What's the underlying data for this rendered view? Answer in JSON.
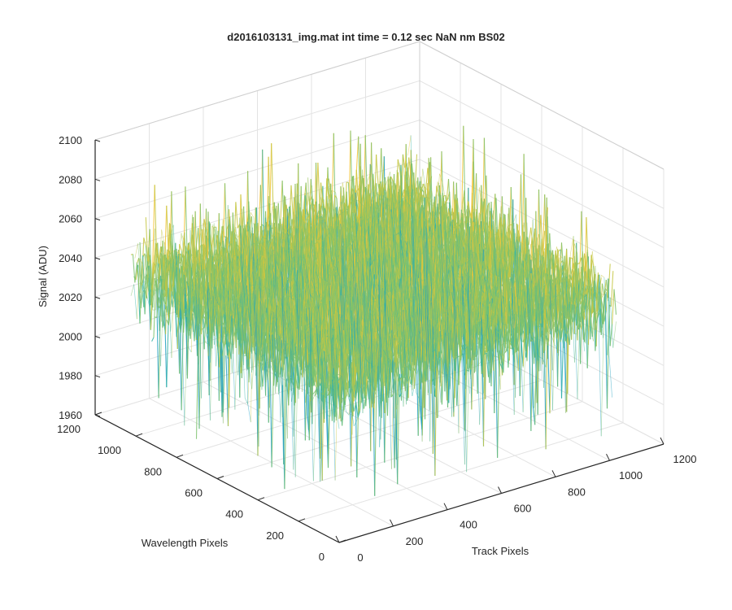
{
  "chart_data": {
    "type": "surface",
    "title": "d2016103131_img.mat int time = 0.12 sec  NaN nm BS02",
    "xlabel": "Track Pixels",
    "ylabel": "Wavelength Pixels",
    "zlabel": "Signal (ADU)",
    "xlim": [
      0,
      1200
    ],
    "ylim": [
      0,
      1200
    ],
    "zlim": [
      1960,
      2100
    ],
    "x_ticks": [
      0,
      200,
      400,
      600,
      800,
      1000,
      1200
    ],
    "y_ticks": [
      0,
      200,
      400,
      600,
      800,
      1000,
      1200
    ],
    "z_ticks": [
      1960,
      1980,
      2000,
      2020,
      2040,
      2060,
      2080,
      2100
    ],
    "surface": {
      "mean": 2040,
      "noise_min": 1980,
      "noise_max": 2090,
      "grid_x_extent": [
        0,
        1024
      ],
      "grid_y_extent": [
        0,
        1024
      ],
      "colormap": [
        "#1e9fbe",
        "#35b3a6",
        "#7cc26e",
        "#c6c744",
        "#f2c53a"
      ]
    },
    "grid": true
  }
}
